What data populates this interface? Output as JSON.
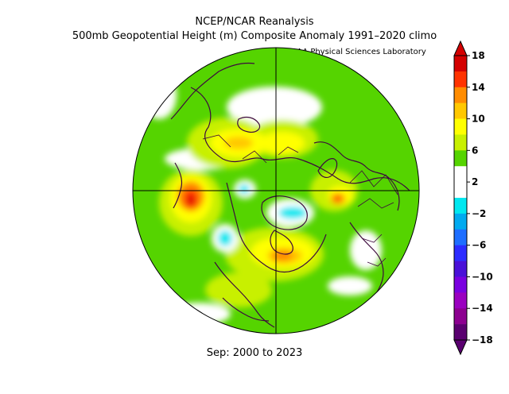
{
  "header": {
    "title": "NCEP/NCAR Reanalysis",
    "subtitle": "500mb Geopotential Height (m) Composite Anomaly 1991–2020 climo",
    "source": "NOAA Physical Sciences Laboratory"
  },
  "footer": {
    "period": "Sep: 2000 to 2023"
  },
  "colorbar": {
    "units": "m",
    "labels": [
      "18",
      "14",
      "10",
      "6",
      "2",
      "−2",
      "−6",
      "−10",
      "−14",
      "−18"
    ],
    "colors": [
      "#d40000",
      "#ff3300",
      "#ff8c00",
      "#ffc800",
      "#ffff00",
      "#c8f000",
      "#55d400",
      "#ffffff",
      "#ffffff",
      "#00e8f0",
      "#00aaf0",
      "#1e6eff",
      "#2c2cff",
      "#4a10d8",
      "#7a00e0",
      "#9a00c0",
      "#8c0090",
      "#5a0070"
    ]
  },
  "colors": {
    "background_fill": "#55d400",
    "coastline": "#3d0a3d"
  }
}
